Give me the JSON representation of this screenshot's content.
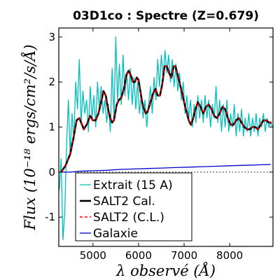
{
  "chart_data": {
    "type": "line",
    "title": "03D1co : Spectre (Z=0.679)",
    "xlabel": "λ observé (Å)",
    "ylabel": "Flux (10⁻¹⁸ ergs/cm²/s/Å)",
    "xlim": [
      4250,
      8950
    ],
    "ylim": [
      -1.65,
      3.2
    ],
    "xticks": [
      5000,
      6000,
      7000,
      8000
    ],
    "yticks": [
      -1,
      0,
      1,
      2,
      3
    ],
    "zero_line": "dotted",
    "legend_placement": "lower-left",
    "series": [
      {
        "name": "Extrait (15 A)",
        "color": "#00BFBF",
        "style": "noisy",
        "points": [
          [
            4260,
            -0.4
          ],
          [
            4300,
            0.3
          ],
          [
            4340,
            -1.5
          ],
          [
            4380,
            -0.9
          ],
          [
            4420,
            0.6
          ],
          [
            4460,
            1.6
          ],
          [
            4500,
            0.4
          ],
          [
            4540,
            1.3
          ],
          [
            4580,
            0.7
          ],
          [
            4620,
            2.0
          ],
          [
            4660,
            1.4
          ],
          [
            4700,
            2.5
          ],
          [
            4740,
            1.1
          ],
          [
            4780,
            1.8
          ],
          [
            4820,
            1.3
          ],
          [
            4860,
            1.6
          ],
          [
            4900,
            0.9
          ],
          [
            4940,
            1.9
          ],
          [
            4980,
            1.2
          ],
          [
            5020,
            1.7
          ],
          [
            5060,
            1.0
          ],
          [
            5100,
            2.0
          ],
          [
            5140,
            1.4
          ],
          [
            5180,
            1.9
          ],
          [
            5220,
            1.3
          ],
          [
            5260,
            1.6
          ],
          [
            5300,
            1.1
          ],
          [
            5340,
            1.5
          ],
          [
            5380,
            0.9
          ],
          [
            5420,
            2.3
          ],
          [
            5460,
            1.2
          ],
          [
            5500,
            3.0
          ],
          [
            5540,
            1.6
          ],
          [
            5580,
            2.4
          ],
          [
            5620,
            1.5
          ],
          [
            5660,
            2.6
          ],
          [
            5700,
            1.7
          ],
          [
            5740,
            2.2
          ],
          [
            5780,
            1.6
          ],
          [
            5820,
            2.3
          ],
          [
            5860,
            1.5
          ],
          [
            5900,
            2.1
          ],
          [
            5940,
            1.4
          ],
          [
            5980,
            2.0
          ],
          [
            6020,
            1.3
          ],
          [
            6060,
            1.7
          ],
          [
            6100,
            1.2
          ],
          [
            6140,
            1.6
          ],
          [
            6180,
            1.0
          ],
          [
            6220,
            1.5
          ],
          [
            6260,
            1.9
          ],
          [
            6300,
            1.3
          ],
          [
            6340,
            2.1
          ],
          [
            6380,
            1.6
          ],
          [
            6420,
            2.5
          ],
          [
            6460,
            1.9
          ],
          [
            6500,
            2.6
          ],
          [
            6540,
            2.1
          ],
          [
            6580,
            2.7
          ],
          [
            6620,
            2.2
          ],
          [
            6660,
            2.6
          ],
          [
            6700,
            2.0
          ],
          [
            6740,
            2.5
          ],
          [
            6780,
            1.9
          ],
          [
            6820,
            2.4
          ],
          [
            6860,
            1.8
          ],
          [
            6900,
            2.2
          ],
          [
            6940,
            1.6
          ],
          [
            6980,
            2.0
          ],
          [
            7020,
            1.3
          ],
          [
            7060,
            1.7
          ],
          [
            7100,
            1.2
          ],
          [
            7140,
            1.6
          ],
          [
            7180,
            1.0
          ],
          [
            7220,
            1.5
          ],
          [
            7260,
            1.1
          ],
          [
            7300,
            1.7
          ],
          [
            7340,
            1.2
          ],
          [
            7380,
            1.6
          ],
          [
            7420,
            1.1
          ],
          [
            7460,
            1.7
          ],
          [
            7500,
            1.2
          ],
          [
            7540,
            1.6
          ],
          [
            7580,
            1.0
          ],
          [
            7620,
            1.5
          ],
          [
            7660,
            1.2
          ],
          [
            7700,
            1.9
          ],
          [
            7740,
            1.1
          ],
          [
            7780,
            1.6
          ],
          [
            7820,
            0.9
          ],
          [
            7860,
            1.5
          ],
          [
            7900,
            1.0
          ],
          [
            7940,
            1.6
          ],
          [
            7980,
            0.9
          ],
          [
            8020,
            1.3
          ],
          [
            8060,
            1.0
          ],
          [
            8100,
            1.5
          ],
          [
            8140,
            0.8
          ],
          [
            8180,
            1.3
          ],
          [
            8220,
            0.9
          ],
          [
            8260,
            1.4
          ],
          [
            8300,
            0.8
          ],
          [
            8340,
            1.2
          ],
          [
            8380,
            0.9
          ],
          [
            8420,
            1.3
          ],
          [
            8460,
            0.8
          ],
          [
            8500,
            1.2
          ],
          [
            8540,
            0.9
          ],
          [
            8580,
            1.3
          ],
          [
            8620,
            0.8
          ],
          [
            8660,
            1.2
          ],
          [
            8700,
            1.0
          ],
          [
            8740,
            1.3
          ],
          [
            8780,
            0.9
          ],
          [
            8820,
            1.2
          ],
          [
            8860,
            1.0
          ],
          [
            8900,
            1.1
          ],
          [
            8940,
            1.0
          ]
        ]
      },
      {
        "name": "SALT2 Cal.",
        "color": "#000000",
        "style": "thick",
        "points": [
          [
            4300,
            0.0
          ],
          [
            4400,
            0.15
          ],
          [
            4500,
            0.4
          ],
          [
            4580,
            0.8
          ],
          [
            4640,
            1.15
          ],
          [
            4700,
            1.2
          ],
          [
            4760,
            1.05
          ],
          [
            4800,
            0.95
          ],
          [
            4860,
            1.05
          ],
          [
            4940,
            1.25
          ],
          [
            5000,
            1.15
          ],
          [
            5060,
            1.15
          ],
          [
            5120,
            1.3
          ],
          [
            5180,
            1.55
          ],
          [
            5230,
            1.8
          ],
          [
            5280,
            1.7
          ],
          [
            5330,
            1.4
          ],
          [
            5380,
            1.2
          ],
          [
            5420,
            1.1
          ],
          [
            5460,
            1.15
          ],
          [
            5520,
            1.5
          ],
          [
            5570,
            1.6
          ],
          [
            5620,
            1.65
          ],
          [
            5680,
            1.85
          ],
          [
            5730,
            2.15
          ],
          [
            5780,
            2.25
          ],
          [
            5830,
            2.15
          ],
          [
            5880,
            2.0
          ],
          [
            5920,
            2.0
          ],
          [
            5960,
            2.1
          ],
          [
            6000,
            2.05
          ],
          [
            6040,
            1.8
          ],
          [
            6080,
            1.55
          ],
          [
            6120,
            1.4
          ],
          [
            6160,
            1.3
          ],
          [
            6200,
            1.35
          ],
          [
            6260,
            1.55
          ],
          [
            6320,
            1.75
          ],
          [
            6370,
            1.85
          ],
          [
            6420,
            1.7
          ],
          [
            6470,
            1.7
          ],
          [
            6520,
            1.95
          ],
          [
            6570,
            2.35
          ],
          [
            6620,
            2.35
          ],
          [
            6670,
            2.2
          ],
          [
            6720,
            2.1
          ],
          [
            6770,
            2.35
          ],
          [
            6810,
            2.35
          ],
          [
            6860,
            2.15
          ],
          [
            6920,
            1.9
          ],
          [
            6960,
            1.75
          ],
          [
            7000,
            1.55
          ],
          [
            7050,
            1.35
          ],
          [
            7100,
            1.15
          ],
          [
            7150,
            1.05
          ],
          [
            7200,
            1.2
          ],
          [
            7250,
            1.4
          ],
          [
            7300,
            1.55
          ],
          [
            7360,
            1.45
          ],
          [
            7420,
            1.3
          ],
          [
            7480,
            1.45
          ],
          [
            7540,
            1.5
          ],
          [
            7600,
            1.4
          ],
          [
            7660,
            1.25
          ],
          [
            7720,
            1.2
          ],
          [
            7780,
            1.3
          ],
          [
            7840,
            1.45
          ],
          [
            7900,
            1.4
          ],
          [
            7960,
            1.2
          ],
          [
            8020,
            1.05
          ],
          [
            8080,
            1.05
          ],
          [
            8140,
            1.15
          ],
          [
            8200,
            1.2
          ],
          [
            8260,
            1.1
          ],
          [
            8320,
            1.0
          ],
          [
            8380,
            0.95
          ],
          [
            8440,
            0.95
          ],
          [
            8500,
            1.0
          ],
          [
            8560,
            1.0
          ],
          [
            8620,
            0.95
          ],
          [
            8680,
            1.05
          ],
          [
            8740,
            1.15
          ],
          [
            8800,
            1.15
          ],
          [
            8860,
            1.1
          ],
          [
            8920,
            1.1
          ]
        ]
      },
      {
        "name": "SALT2 (C.L.)",
        "color": "#FF0000",
        "style": "dashed"
      },
      {
        "name": "Galaxie",
        "color": "#0000CC",
        "style": "thin",
        "points": [
          [
            4300,
            0.0
          ],
          [
            4500,
            0.0
          ],
          [
            4700,
            0.02
          ],
          [
            5000,
            0.03
          ],
          [
            5300,
            0.04
          ],
          [
            5600,
            0.06
          ],
          [
            5900,
            0.07
          ],
          [
            6200,
            0.08
          ],
          [
            6500,
            0.09
          ],
          [
            6800,
            0.1
          ],
          [
            7100,
            0.11
          ],
          [
            7400,
            0.12
          ],
          [
            7700,
            0.13
          ],
          [
            8000,
            0.14
          ],
          [
            8300,
            0.15
          ],
          [
            8600,
            0.16
          ],
          [
            8900,
            0.17
          ]
        ]
      }
    ]
  }
}
